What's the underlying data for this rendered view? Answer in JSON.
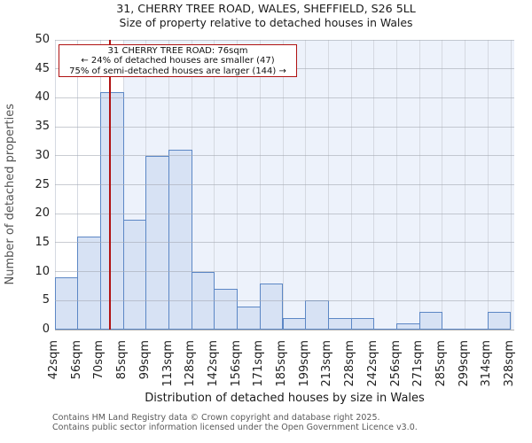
{
  "page": {
    "title_line1": "31, CHERRY TREE ROAD, WALES, SHEFFIELD, S26 5LL",
    "title_line2": "Size of property relative to detached houses in Wales"
  },
  "chart_data": {
    "type": "bar",
    "title": "31, CHERRY TREE ROAD, WALES, SHEFFIELD, S26 5LL",
    "subtitle": "Size of property relative to detached houses in Wales",
    "xlabel": "Distribution of detached houses by size in Wales",
    "ylabel": "Number of detached properties",
    "tick_labels": [
      "42sqm",
      "56sqm",
      "70sqm",
      "85sqm",
      "99sqm",
      "113sqm",
      "128sqm",
      "142sqm",
      "156sqm",
      "171sqm",
      "185sqm",
      "199sqm",
      "213sqm",
      "228sqm",
      "242sqm",
      "256sqm",
      "271sqm",
      "285sqm",
      "299sqm",
      "314sqm",
      "328sqm"
    ],
    "tick_values_sqm": [
      42,
      56,
      70,
      85,
      99,
      113,
      128,
      142,
      156,
      171,
      185,
      199,
      213,
      228,
      242,
      256,
      271,
      285,
      299,
      314,
      328
    ],
    "bin_counts": [
      9,
      16,
      41,
      19,
      30,
      31,
      10,
      7,
      4,
      8,
      2,
      5,
      2,
      2,
      0,
      1,
      3,
      0,
      0,
      3
    ],
    "ylim": [
      0,
      50
    ],
    "ytick_step": 5,
    "grid": true,
    "legend": "none",
    "marker": {
      "sqm": 76
    },
    "shade_start_sqm": 85,
    "colors": {
      "bar_fill": "#d7e2f4",
      "bar_edge": "#5c87c5",
      "marker_red": "#b01212",
      "shade": "#edf2fb",
      "vgrid": "#d5d9e1",
      "hgrid": "rgba(165,170,180,0.6)"
    }
  },
  "annotation": {
    "line1": "31 CHERRY TREE ROAD: 76sqm",
    "line2": "← 24% of detached houses are smaller (47)",
    "line3": "75% of semi-detached houses are larger (144) →"
  },
  "footer": {
    "line1": "Contains HM Land Registry data © Crown copyright and database right 2025.",
    "line2": "Contains public sector information licensed under the Open Government Licence v3.0."
  }
}
